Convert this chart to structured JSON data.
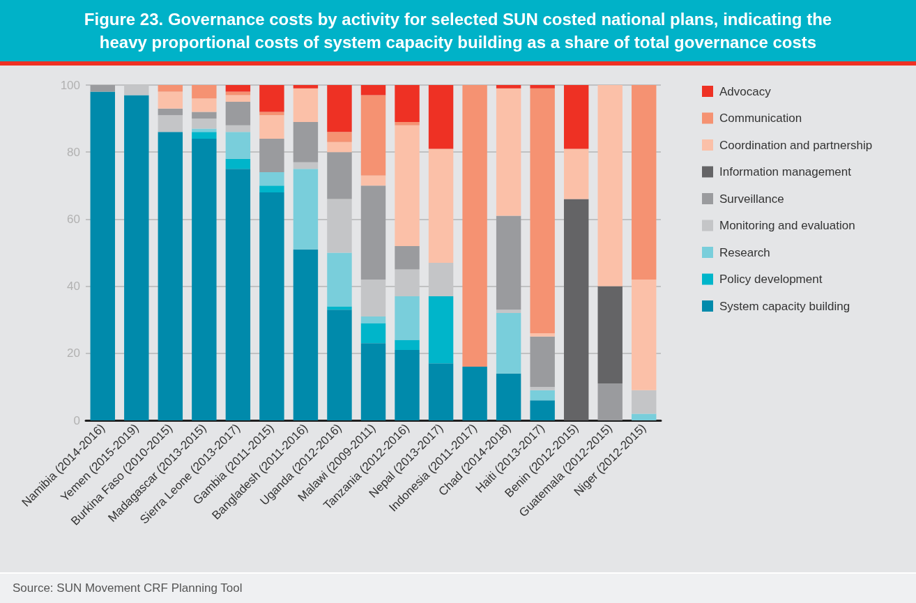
{
  "chart_data": {
    "type": "bar",
    "title": "Figure 23. Governance costs by activity for selected SUN costed national plans, indicating the heavy proportional costs of system capacity building as a share of total governance costs",
    "categories": [
      "Namibia (2014-2016)",
      "Yemen (2015-2019)",
      "Burkina Faso (2010-2015)",
      "Madagascar (2013-2015)",
      "Sierra Leone (2013-2017)",
      "Gambia (2011-2015)",
      "Bangladesh (2011-2016)",
      "Uganda (2012-2016)",
      "Malawi (2009-2011)",
      "Tanzania (2012-2016)",
      "Nepal (2013-2017)",
      "Indonesia (2011-2017)",
      "Chad (2014-2018)",
      "Haiti (2013-2017)",
      "Benin (2012-2015)",
      "Guatemala (2012-2015)",
      "Niger (2012-2015)"
    ],
    "series": [
      {
        "name": "System capacity building",
        "color": "#008aab",
        "values": [
          98,
          97,
          86,
          84,
          75,
          68,
          51,
          33,
          23,
          21,
          17,
          16,
          14,
          6,
          null,
          null,
          null
        ]
      },
      {
        "name": "Policy development",
        "color": "#00b5ca",
        "values": [
          null,
          null,
          null,
          2,
          3,
          2,
          null,
          1,
          6,
          3,
          20,
          null,
          null,
          null,
          null,
          null,
          null
        ]
      },
      {
        "name": "Research",
        "color": "#79cedb",
        "values": [
          null,
          null,
          null,
          1,
          8,
          4,
          24,
          16,
          2,
          13,
          null,
          null,
          18,
          3,
          null,
          null,
          2
        ]
      },
      {
        "name": "Monitoring and evaluation",
        "color": "#c4c5c7",
        "values": [
          null,
          3,
          5,
          3,
          2,
          null,
          2,
          16,
          11,
          8,
          10,
          null,
          1,
          1,
          null,
          null,
          7
        ]
      },
      {
        "name": "Surveillance",
        "color": "#9a9b9e",
        "values": [
          2,
          null,
          2,
          2,
          7,
          10,
          12,
          14,
          28,
          7,
          null,
          null,
          28,
          15,
          null,
          11,
          null
        ]
      },
      {
        "name": "Information management",
        "color": "#646466",
        "values": [
          null,
          null,
          null,
          null,
          null,
          null,
          null,
          null,
          null,
          null,
          null,
          null,
          null,
          null,
          66,
          29,
          null
        ]
      },
      {
        "name": "Coordination and partnership",
        "color": "#fbc0a8",
        "values": [
          null,
          null,
          5,
          4,
          2,
          7,
          10,
          3,
          3,
          36,
          34,
          null,
          38,
          1,
          15,
          60,
          33
        ]
      },
      {
        "name": "Communication",
        "color": "#f59272",
        "values": [
          null,
          null,
          2,
          4,
          1,
          1,
          null,
          3,
          24,
          1,
          null,
          84,
          null,
          73,
          null,
          null,
          58
        ]
      },
      {
        "name": "Advocacy",
        "color": "#ee3124",
        "values": [
          null,
          null,
          null,
          null,
          2,
          8,
          1,
          14,
          3,
          11,
          19,
          null,
          1,
          1,
          19,
          null,
          null
        ]
      }
    ],
    "stacked": true,
    "ylim": [
      0,
      100
    ],
    "yticks": [
      0,
      20,
      40,
      60,
      80,
      100
    ],
    "grid": "y",
    "legend": "right",
    "annotations": [
      "Source: SUN Movement CRF Planning Tool"
    ]
  }
}
